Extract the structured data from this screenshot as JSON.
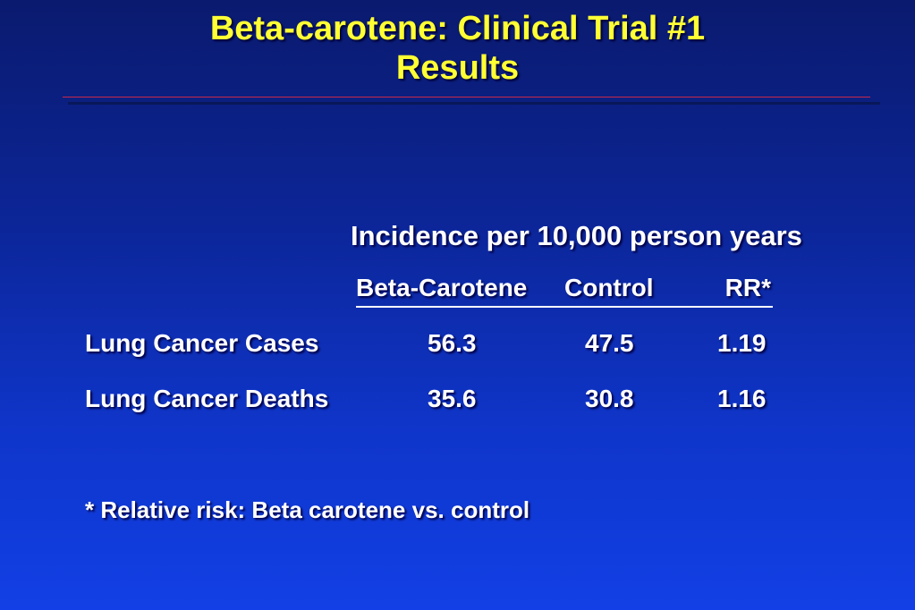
{
  "slide": {
    "title_line1": "Beta-carotene:  Clinical Trial #1",
    "title_line2": "Results"
  },
  "table": {
    "caption": "Incidence per 10,000 person years",
    "columns": [
      "Beta-Carotene",
      "Control",
      "RR*"
    ],
    "rows": [
      {
        "label": "Lung Cancer Cases",
        "beta": "56.3",
        "control": "47.5",
        "rr": "1.19"
      },
      {
        "label": "Lung Cancer Deaths",
        "beta": "35.6",
        "control": "30.8",
        "rr": "1.16"
      }
    ]
  },
  "footnote": "* Relative risk: Beta carotene vs. control",
  "colors": {
    "title": "#ffff33",
    "background_top": "#0a1a6e",
    "background_bottom": "#1240e6",
    "rule": "#c8284a",
    "text": "#ffffff"
  }
}
